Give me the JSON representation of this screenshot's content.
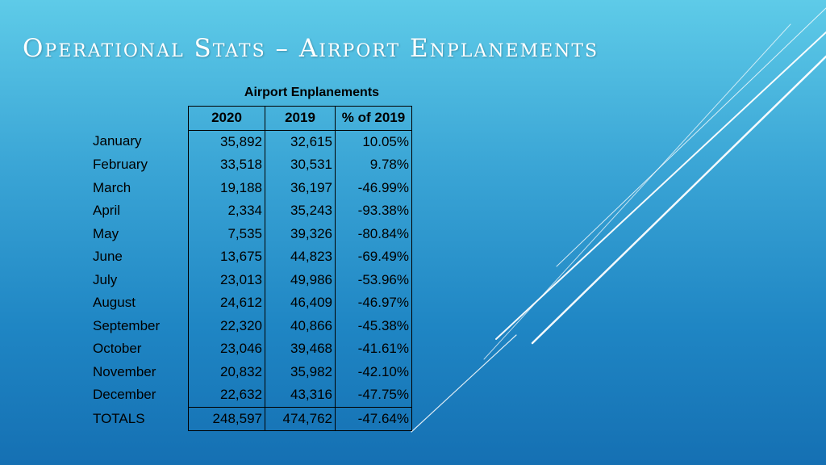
{
  "slide": {
    "title": "Operational Stats – Airport Enplanements"
  },
  "table": {
    "title": "Airport Enplanements",
    "headers": [
      "",
      "2020",
      "2019",
      "% of 2019"
    ],
    "rows": [
      {
        "month": "January",
        "y2020": "35,892",
        "y2019": "32,615",
        "pct": "10.05%"
      },
      {
        "month": "February",
        "y2020": "33,518",
        "y2019": "30,531",
        "pct": "9.78%"
      },
      {
        "month": "March",
        "y2020": "19,188",
        "y2019": "36,197",
        "pct": "-46.99%"
      },
      {
        "month": "April",
        "y2020": "2,334",
        "y2019": "35,243",
        "pct": "-93.38%"
      },
      {
        "month": "May",
        "y2020": "7,535",
        "y2019": "39,326",
        "pct": "-80.84%"
      },
      {
        "month": "June",
        "y2020": "13,675",
        "y2019": "44,823",
        "pct": "-69.49%"
      },
      {
        "month": "July",
        "y2020": "23,013",
        "y2019": "49,986",
        "pct": "-53.96%"
      },
      {
        "month": "August",
        "y2020": "24,612",
        "y2019": "46,409",
        "pct": "-46.97%"
      },
      {
        "month": "September",
        "y2020": "22,320",
        "y2019": "40,866",
        "pct": "-45.38%"
      },
      {
        "month": "October",
        "y2020": "23,046",
        "y2019": "39,468",
        "pct": "-41.61%"
      },
      {
        "month": "November",
        "y2020": "20,832",
        "y2019": "35,982",
        "pct": "-42.10%"
      },
      {
        "month": "December",
        "y2020": "22,632",
        "y2019": "43,316",
        "pct": "-47.75%"
      }
    ],
    "totals": {
      "label": "TOTALS",
      "y2020": "248,597",
      "y2019": "474,762",
      "pct": "-47.64%"
    }
  },
  "colors": {
    "background_top": "#5ecbe8",
    "background_bottom": "#1570b3",
    "title_text": "#ffffff",
    "table_text": "#000000"
  }
}
